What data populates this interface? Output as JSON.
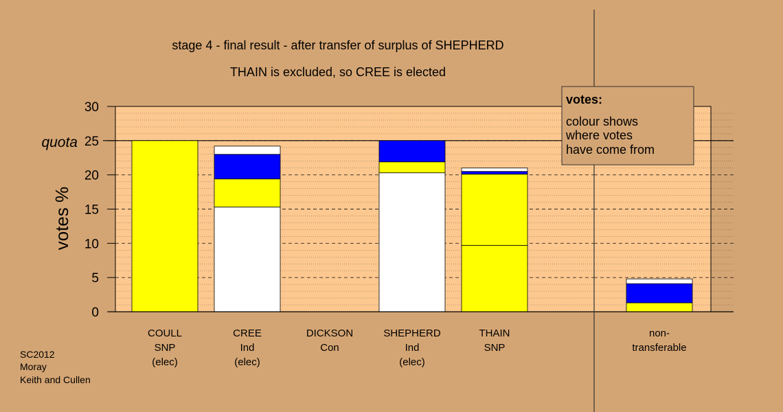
{
  "chart_data": {
    "type": "bar",
    "title": "stage 4 - final result - after transfer of surplus of SHEPHERD",
    "subtitle": "THAIN is excluded, so CREE is elected",
    "ylabel": "votes %",
    "ylim": [
      0,
      30
    ],
    "yticks": [
      "0",
      "5",
      "10",
      "15",
      "20",
      "25",
      "30"
    ],
    "quota": 25,
    "quota_label": "quota",
    "grid": true,
    "categories": [
      {
        "lines": [
          "COULL",
          "SNP",
          "(elec)"
        ]
      },
      {
        "lines": [
          "CREE",
          "Ind",
          "(elec)"
        ]
      },
      {
        "lines": [
          "DICKSON",
          "Con"
        ]
      },
      {
        "lines": [
          "SHEPHERD",
          "Ind",
          "(elec)"
        ]
      },
      {
        "lines": [
          "THAIN",
          "SNP"
        ]
      },
      {
        "lines": [
          "non-",
          "transferable"
        ]
      }
    ],
    "bars": [
      {
        "category": "COULL",
        "segments": [
          {
            "color": "#ffff00",
            "value": 25.0
          }
        ]
      },
      {
        "category": "CREE",
        "segments": [
          {
            "color": "#ffffff",
            "value": 15.3
          },
          {
            "color": "#ffff00",
            "value": 4.1
          },
          {
            "color": "#0000ff",
            "value": 3.6
          },
          {
            "color": "#ffffff",
            "value": 1.2
          }
        ]
      },
      {
        "category": "DICKSON",
        "segments": []
      },
      {
        "category": "SHEPHERD",
        "segments": [
          {
            "color": "#ffffff",
            "value": 20.3
          },
          {
            "color": "#ffff00",
            "value": 1.6
          },
          {
            "color": "#0000ff",
            "value": 3.1
          }
        ]
      },
      {
        "category": "THAIN",
        "segments": [
          {
            "color": "#ffff00",
            "value": 9.7
          },
          {
            "color": "#ffff00",
            "value": 10.4
          },
          {
            "color": "#0000ff",
            "value": 0.4
          },
          {
            "color": "#ffffff",
            "value": 0.5
          }
        ]
      },
      {
        "category": "non-transferable",
        "segments": [
          {
            "color": "#ffff00",
            "value": 1.3
          },
          {
            "color": "#0000ff",
            "value": 2.8
          },
          {
            "color": "#ffffff",
            "value": 0.7
          }
        ]
      }
    ],
    "colors": {
      "background": "#d4a574",
      "plot_area": "#fcc890",
      "candidate_yellow": "#ffff00",
      "candidate_blue": "#0000ff",
      "candidate_white": "#ffffff"
    }
  },
  "legend": {
    "title": "votes:",
    "lines": [
      "colour shows",
      "where votes",
      "have come from"
    ]
  },
  "footer": {
    "lines": [
      "SC2012",
      "Moray",
      "Keith and Cullen"
    ]
  }
}
